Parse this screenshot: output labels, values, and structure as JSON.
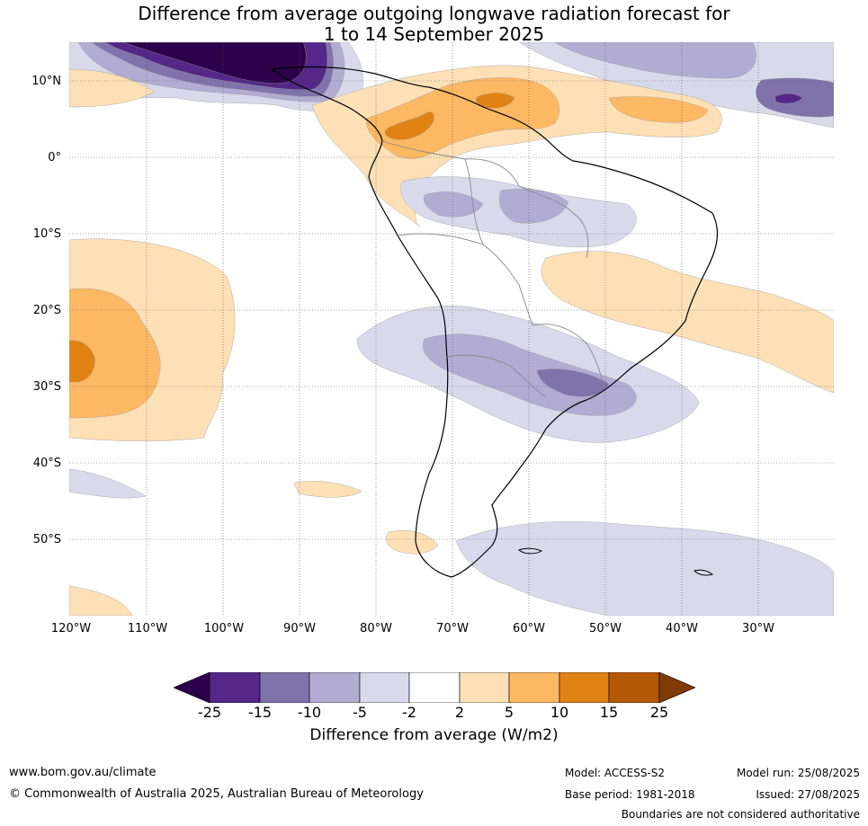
{
  "title": {
    "line1": "Difference from average outgoing longwave radiation forecast for",
    "line2": "1 to 14 September 2025"
  },
  "lat_labels": [
    "10°N",
    "0°",
    "10°S",
    "20°S",
    "30°S",
    "40°S",
    "50°S"
  ],
  "lon_labels": [
    "120°W",
    "110°W",
    "100°W",
    "90°W",
    "80°W",
    "70°W",
    "60°W",
    "50°W",
    "40°W",
    "30°W"
  ],
  "colorbar": {
    "ticks": [
      "-25",
      "-15",
      "-10",
      "-5",
      "-2",
      "2",
      "5",
      "10",
      "15",
      "25"
    ],
    "colors": [
      "#2d004b",
      "#542788",
      "#8073ac",
      "#b2abd2",
      "#d8daeb",
      "#ffffff",
      "#fee0b6",
      "#fdb863",
      "#e08214",
      "#b35806",
      "#7f3b08"
    ],
    "label": "Difference from average (W/m2)"
  },
  "footer": {
    "url": "www.bom.gov.au/climate",
    "copyright": "© Commonwealth of Australia 2025, Australian Bureau of Meteorology",
    "model": "Model: ACCESS-S2",
    "base_period": "Base period: 1981-2018",
    "model_run": "Model run: 25/08/2025",
    "issued": "Issued: 27/08/2025",
    "disclaimer": "Boundaries are not considered authoritative"
  }
}
